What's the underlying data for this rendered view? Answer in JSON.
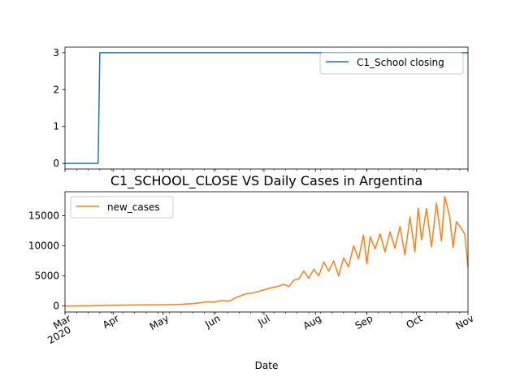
{
  "chart_data": [
    {
      "type": "line",
      "title": "",
      "xlabel": "",
      "ylabel": "",
      "ylim": [
        -0.15,
        3.15
      ],
      "yticks": [
        0,
        1,
        2,
        3
      ],
      "grid": false,
      "legend": "top-right",
      "series": [
        {
          "name": "C1_School closing",
          "color": "#1f77b4",
          "x": [
            "2020-03-03",
            "2020-03-23",
            "2020-03-24",
            "2020-11-01"
          ],
          "y": [
            0,
            0,
            3,
            3
          ]
        }
      ]
    },
    {
      "type": "line",
      "title": "C1_SCHOOL_CLOSE VS Daily Cases in Argentina",
      "xlabel": "Date",
      "ylabel": "",
      "ylim": [
        -1000,
        19000
      ],
      "yticks": [
        0,
        5000,
        10000,
        15000
      ],
      "xlim": [
        "2020-03-03",
        "2020-11-01"
      ],
      "xticks": [
        {
          "date": "2020-03-01",
          "label": "Mar",
          "label2": "2020"
        },
        {
          "date": "2020-04-01",
          "label": "Apr"
        },
        {
          "date": "2020-05-01",
          "label": "May"
        },
        {
          "date": "2020-06-01",
          "label": "Jun"
        },
        {
          "date": "2020-07-01",
          "label": "Jul"
        },
        {
          "date": "2020-08-01",
          "label": "Aug"
        },
        {
          "date": "2020-09-01",
          "label": "Sep"
        },
        {
          "date": "2020-10-01",
          "label": "Oct"
        },
        {
          "date": "2020-11-01",
          "label": "Nov"
        }
      ],
      "grid": false,
      "legend": "top-left",
      "series": [
        {
          "name": "new_cases",
          "color": "#ff7f0e",
          "x": [
            "2020-03-03",
            "2020-03-10",
            "2020-03-20",
            "2020-04-01",
            "2020-04-10",
            "2020-04-20",
            "2020-05-01",
            "2020-05-10",
            "2020-05-20",
            "2020-05-28",
            "2020-06-01",
            "2020-06-05",
            "2020-06-10",
            "2020-06-15",
            "2020-06-20",
            "2020-06-25",
            "2020-06-30",
            "2020-07-05",
            "2020-07-10",
            "2020-07-13",
            "2020-07-16",
            "2020-07-19",
            "2020-07-22",
            "2020-07-25",
            "2020-07-28",
            "2020-07-31",
            "2020-08-03",
            "2020-08-06",
            "2020-08-09",
            "2020-08-12",
            "2020-08-15",
            "2020-08-18",
            "2020-08-21",
            "2020-08-24",
            "2020-08-27",
            "2020-08-30",
            "2020-09-01",
            "2020-09-03",
            "2020-09-06",
            "2020-09-09",
            "2020-09-12",
            "2020-09-15",
            "2020-09-18",
            "2020-09-21",
            "2020-09-24",
            "2020-09-27",
            "2020-09-30",
            "2020-10-02",
            "2020-10-04",
            "2020-10-07",
            "2020-10-10",
            "2020-10-13",
            "2020-10-16",
            "2020-10-18",
            "2020-10-21",
            "2020-10-23",
            "2020-10-25",
            "2020-10-27",
            "2020-10-30",
            "2020-11-01"
          ],
          "y": [
            0,
            20,
            50,
            120,
            150,
            180,
            200,
            250,
            400,
            700,
            600,
            900,
            800,
            1500,
            2000,
            2200,
            2600,
            3000,
            3300,
            3600,
            3200,
            4300,
            4500,
            5800,
            4600,
            6100,
            5000,
            7300,
            5800,
            7500,
            5000,
            8000,
            6500,
            10000,
            7800,
            11800,
            7000,
            11500,
            9500,
            12000,
            9000,
            12300,
            9600,
            13200,
            8500,
            14800,
            9000,
            16300,
            11000,
            16200,
            9800,
            17100,
            10800,
            18200,
            14800,
            9700,
            14000,
            13300,
            12000,
            6500
          ]
        }
      ]
    }
  ]
}
